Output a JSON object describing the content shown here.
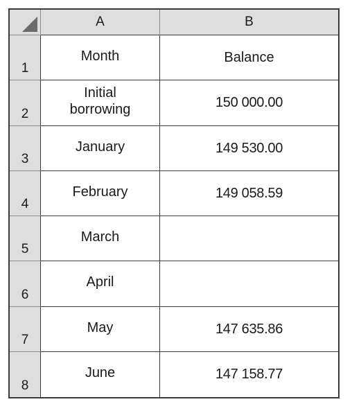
{
  "corner": {
    "icon": "select-all-triangle-icon"
  },
  "columns": [
    "A",
    "B"
  ],
  "rows": [
    {
      "num": "1",
      "a": "Month",
      "b": "Balance"
    },
    {
      "num": "2",
      "a": "Initial\nborrowing",
      "b": "150 000.00"
    },
    {
      "num": "3",
      "a": "January",
      "b": "149 530.00"
    },
    {
      "num": "4",
      "a": "February",
      "b": "149 058.59"
    },
    {
      "num": "5",
      "a": "March",
      "b": ""
    },
    {
      "num": "6",
      "a": "April",
      "b": ""
    },
    {
      "num": "7",
      "a": "May",
      "b": "147 635.86"
    },
    {
      "num": "8",
      "a": "June",
      "b": "147 158.77"
    }
  ],
  "colors": {
    "header_bg": "#dedede",
    "grid_line": "#3a3a3a",
    "corner_triangle": "#6b6b6b"
  }
}
